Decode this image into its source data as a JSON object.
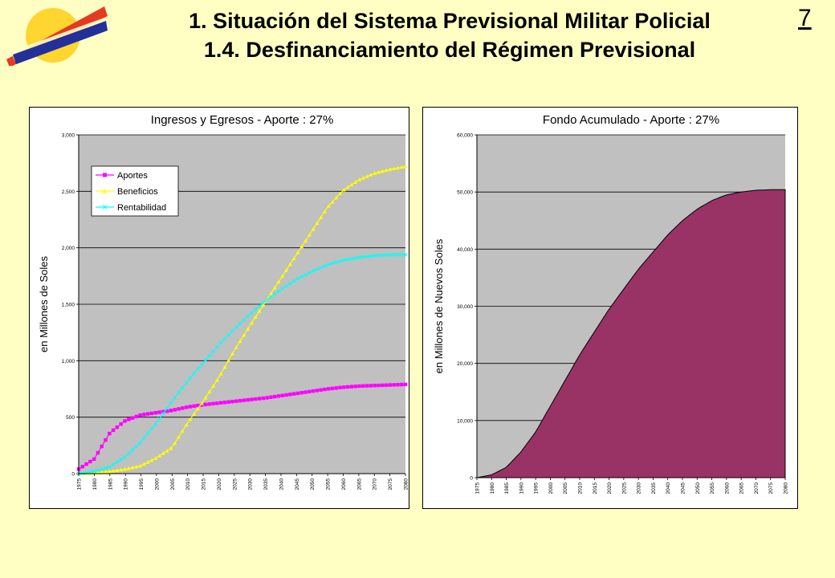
{
  "header": {
    "title_line1": "1. Situación del Sistema Previsional Militar Policial",
    "title_line2": "1.4. Desfinanciamiento del Régimen Previsional",
    "page_number": "7"
  },
  "colors": {
    "background": "#FFFFC4",
    "plot_area": "#C0C0C0",
    "aportes": "#FF00FF",
    "beneficios": "#FFFF00",
    "rentabilidad": "#00FFFF",
    "fondo": "#993366"
  },
  "chart_data": [
    {
      "type": "line",
      "title": "Ingresos y Egresos - Aporte : 27%",
      "xlabel": "",
      "ylabel": "en Millones de Soles",
      "ylim": [
        0,
        3000
      ],
      "yticks": [
        "0",
        "500",
        "1,000",
        "1,500",
        "2,000",
        "2,500",
        "3,000"
      ],
      "grid": true,
      "legend_position": "top-left",
      "x": [
        "1975",
        "1980",
        "1985",
        "1990",
        "1995",
        "2000",
        "2005",
        "2010",
        "2015",
        "2020",
        "2025",
        "2030",
        "2035",
        "2040",
        "2045",
        "2050",
        "2055",
        "2060",
        "2065",
        "2070",
        "2075",
        "2080"
      ],
      "series": [
        {
          "name": "Aportes",
          "marker": "square",
          "values": [
            40,
            130,
            360,
            470,
            520,
            540,
            560,
            590,
            610,
            625,
            640,
            655,
            670,
            690,
            710,
            730,
            750,
            765,
            775,
            780,
            785,
            790
          ]
        },
        {
          "name": "Beneficios",
          "marker": "triangle",
          "values": [
            0,
            5,
            20,
            40,
            70,
            140,
            230,
            450,
            640,
            850,
            1090,
            1310,
            1520,
            1730,
            1940,
            2150,
            2360,
            2510,
            2600,
            2660,
            2695,
            2720
          ]
        },
        {
          "name": "Rentabilidad",
          "marker": "x",
          "values": [
            0,
            20,
            60,
            150,
            280,
            450,
            640,
            820,
            980,
            1140,
            1280,
            1410,
            1530,
            1630,
            1720,
            1790,
            1850,
            1890,
            1915,
            1930,
            1938,
            1940
          ]
        }
      ]
    },
    {
      "type": "area",
      "title": "Fondo Acumulado - Aporte : 27%",
      "xlabel": "",
      "ylabel": "en Millones de Nuevos Soles",
      "ylim": [
        0,
        60000
      ],
      "yticks": [
        "0",
        "10,000",
        "20,000",
        "30,000",
        "40,000",
        "50,000",
        "60,000"
      ],
      "grid": true,
      "x": [
        "1975",
        "1980",
        "1985",
        "1990",
        "1995",
        "2000",
        "2005",
        "2010",
        "2015",
        "2020",
        "2025",
        "2030",
        "2035",
        "2040",
        "2045",
        "2050",
        "2055",
        "2060",
        "2065",
        "2070",
        "2075",
        "2080"
      ],
      "series": [
        {
          "name": "",
          "values": [
            0,
            500,
            1800,
            4500,
            8000,
            12500,
            17000,
            21500,
            25500,
            29500,
            33000,
            36500,
            39500,
            42500,
            45000,
            47000,
            48500,
            49500,
            50000,
            50300,
            50400,
            50400
          ]
        }
      ]
    }
  ]
}
